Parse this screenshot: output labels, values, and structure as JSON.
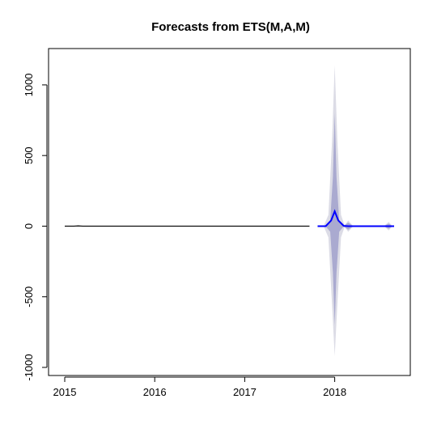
{
  "chart_data": {
    "type": "line",
    "title": "Forecasts from ETS(M,A,M)",
    "xlabel": "",
    "ylabel": "",
    "xlim": [
      2015.0,
      2018.75
    ],
    "ylim": [
      -1000,
      1200
    ],
    "x_ticks": [
      {
        "value": 2015,
        "label": "2015"
      },
      {
        "value": 2016,
        "label": "2016"
      },
      {
        "value": 2017,
        "label": "2017"
      },
      {
        "value": 2018,
        "label": "2018"
      }
    ],
    "y_ticks": [
      {
        "value": 1000,
        "label": "1000"
      },
      {
        "value": 500,
        "label": "500"
      },
      {
        "value": 0,
        "label": "0"
      },
      {
        "value": -500,
        "label": "-500"
      },
      {
        "value": -1000,
        "label": "-1000"
      }
    ],
    "series": [
      {
        "role": "history",
        "color": "#000000",
        "x": [
          2015.0,
          2015.1,
          2015.15,
          2015.2,
          2015.5,
          2016.0,
          2016.5,
          2017.0,
          2017.5,
          2017.72
        ],
        "y": [
          0,
          0,
          2,
          0,
          0,
          0,
          0,
          0,
          0,
          0
        ]
      },
      {
        "role": "forecast",
        "color": "#0000ff",
        "x": [
          2017.81,
          2017.9,
          2017.96,
          2018.0,
          2018.04,
          2018.1,
          2018.15,
          2018.2,
          2018.3,
          2018.45,
          2018.58,
          2018.66
        ],
        "y": [
          0,
          0,
          40,
          105,
          40,
          2,
          0,
          0,
          0,
          0,
          0,
          0
        ]
      }
    ],
    "bands": [
      {
        "level": 95,
        "color": "#dcdce6",
        "x": [
          2017.88,
          2017.93,
          2017.97,
          2018.0,
          2018.03,
          2018.07,
          2018.11,
          2018.15,
          2018.2,
          2018.25,
          2018.55,
          2018.6,
          2018.64
        ],
        "upper": [
          5,
          80,
          600,
          1140,
          600,
          80,
          5,
          40,
          5,
          2,
          2,
          30,
          2
        ],
        "lower": [
          -5,
          -80,
          -550,
          -920,
          -550,
          -80,
          -5,
          -40,
          -5,
          -2,
          -2,
          -30,
          -2
        ]
      },
      {
        "level": 80,
        "color": "#aaaad0",
        "x": [
          2017.9,
          2017.95,
          2017.98,
          2018.0,
          2018.02,
          2018.05,
          2018.1,
          2018.15,
          2018.2,
          2018.25,
          2018.55,
          2018.6,
          2018.64
        ],
        "upper": [
          2,
          40,
          350,
          800,
          350,
          40,
          2,
          25,
          2,
          1,
          1,
          18,
          1
        ],
        "lower": [
          -2,
          -40,
          -330,
          -700,
          -330,
          -40,
          -2,
          -25,
          -2,
          -1,
          -1,
          -18,
          -1
        ]
      }
    ]
  }
}
